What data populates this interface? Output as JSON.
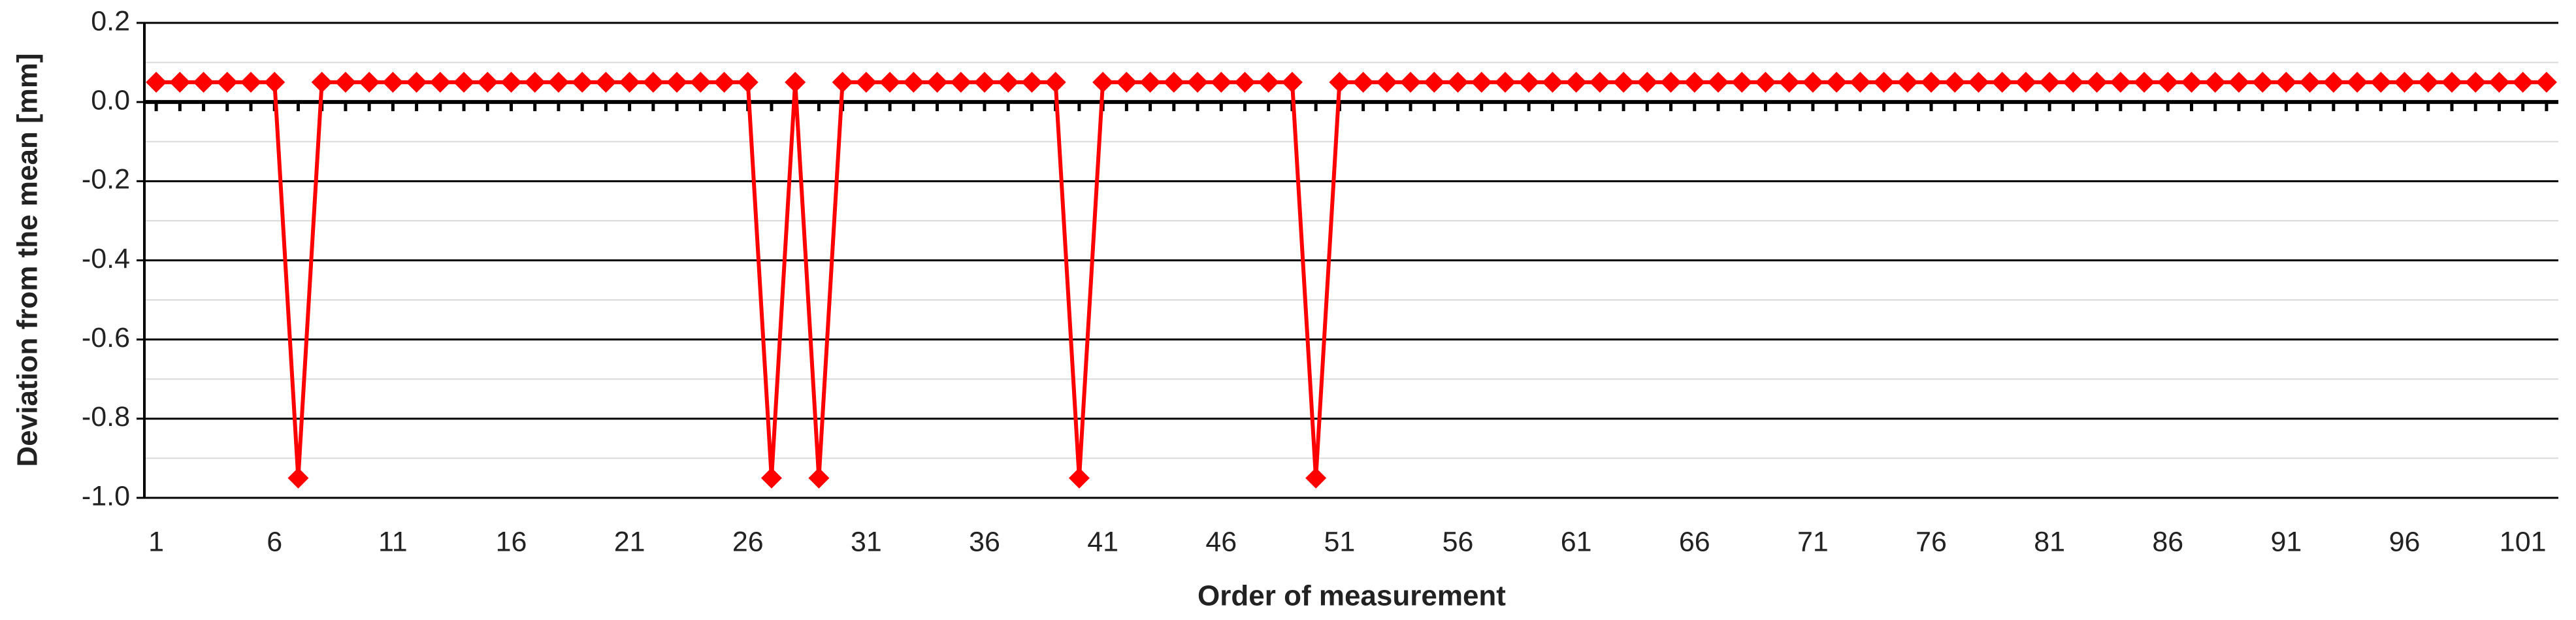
{
  "chart_data": {
    "type": "line",
    "y_label": "Deviation from the mean [mm]",
    "x_label": "Order of measurement",
    "x": [
      1,
      2,
      3,
      4,
      5,
      6,
      7,
      8,
      9,
      10,
      11,
      12,
      13,
      14,
      15,
      16,
      17,
      18,
      19,
      20,
      21,
      22,
      23,
      24,
      25,
      26,
      27,
      28,
      29,
      30,
      31,
      32,
      33,
      34,
      35,
      36,
      37,
      38,
      39,
      40,
      41,
      42,
      43,
      44,
      45,
      46,
      47,
      48,
      49,
      50,
      51,
      52,
      53,
      54,
      55,
      56,
      57,
      58,
      59,
      60,
      61,
      62,
      63,
      64,
      65,
      66,
      67,
      68,
      69,
      70,
      71,
      72,
      73,
      74,
      75,
      76,
      77,
      78,
      79,
      80,
      81,
      82,
      83,
      84,
      85,
      86,
      87,
      88,
      89,
      90,
      91,
      92,
      93,
      94,
      95,
      96,
      97,
      98,
      99,
      100,
      101,
      102
    ],
    "series": [
      {
        "color": "#ff0000",
        "values": [
          0.05,
          0.05,
          0.05,
          0.05,
          0.05,
          0.05,
          -0.95,
          0.05,
          0.05,
          0.05,
          0.05,
          0.05,
          0.05,
          0.05,
          0.05,
          0.05,
          0.05,
          0.05,
          0.05,
          0.05,
          0.05,
          0.05,
          0.05,
          0.05,
          0.05,
          0.05,
          -0.95,
          0.05,
          -0.95,
          0.05,
          0.05,
          0.05,
          0.05,
          0.05,
          0.05,
          0.05,
          0.05,
          0.05,
          0.05,
          -0.95,
          0.05,
          0.05,
          0.05,
          0.05,
          0.05,
          0.05,
          0.05,
          0.05,
          0.05,
          -0.95,
          0.05,
          0.05,
          0.05,
          0.05,
          0.05,
          0.05,
          0.05,
          0.05,
          0.05,
          0.05,
          0.05,
          0.05,
          0.05,
          0.05,
          0.05,
          0.05,
          0.05,
          0.05,
          0.05,
          0.05,
          0.05,
          0.05,
          0.05,
          0.05,
          0.05,
          0.05,
          0.05,
          0.05,
          0.05,
          0.05,
          0.05,
          0.05,
          0.05,
          0.05,
          0.05,
          0.05,
          0.05,
          0.05,
          0.05,
          0.05,
          0.05,
          0.05,
          0.05,
          0.05,
          0.05,
          0.05,
          0.05,
          0.05,
          0.05,
          0.05,
          0.05,
          0.05
        ]
      }
    ],
    "xlim": [
      0.5,
      102.5
    ],
    "xticks": [
      1,
      6,
      11,
      16,
      21,
      26,
      31,
      36,
      41,
      46,
      51,
      56,
      61,
      66,
      71,
      76,
      81,
      86,
      91,
      96,
      101
    ],
    "ylim": [
      -1.0,
      0.2
    ],
    "yticks": [
      0.2,
      {
        "value": 0,
        "label": "0.0"
      },
      -0.2,
      -0.4,
      -0.6,
      -0.8,
      {
        "value": -1.0,
        "label": "-1.0"
      }
    ],
    "minor_yticks": [
      0.1,
      -0.1,
      -0.3,
      -0.5,
      -0.7,
      -0.9
    ],
    "grid": true
  }
}
